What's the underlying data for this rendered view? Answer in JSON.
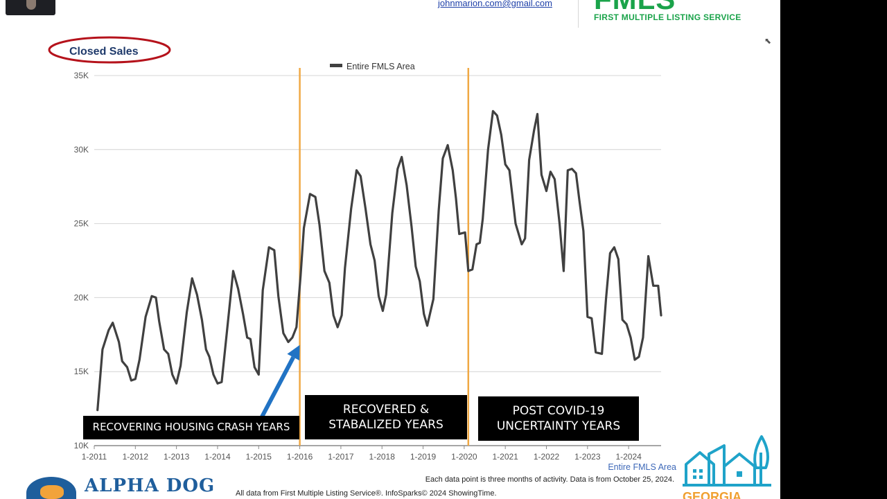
{
  "header": {
    "email": "johnmarion.com@gmail.com",
    "logo_text": "FMLS",
    "logo_tagline": "FIRST MULTIPLE LISTING SERVICE"
  },
  "chart_data": {
    "type": "line",
    "title": "Closed Sales",
    "legend": "Entire FMLS Area",
    "legend_position": "top-center",
    "xlabel": "",
    "ylabel": "",
    "ylim": [
      10000,
      35000
    ],
    "yticks": [
      10000,
      15000,
      20000,
      25000,
      30000,
      35000
    ],
    "ytick_labels": [
      "10K",
      "15K",
      "20K",
      "25K",
      "30K",
      "35K"
    ],
    "x_start_year": 2011,
    "x_end_year": 2024.79,
    "xtick_labels": [
      "1-2011",
      "1-2012",
      "1-2013",
      "1-2014",
      "1-2015",
      "1-2016",
      "1-2017",
      "1-2018",
      "1-2019",
      "1-2020",
      "1-2021",
      "1-2022",
      "1-2023",
      "1-2024"
    ],
    "grid": true,
    "vertical_markers": [
      2016.0,
      2020.1
    ],
    "vertical_marker_color": "#f0a844",
    "line_color": "#404040",
    "series": [
      {
        "name": "Entire FMLS Area",
        "x": [
          2011.08,
          2011.2,
          2011.35,
          2011.45,
          2011.6,
          2011.68,
          2011.8,
          2011.9,
          2012.0,
          2012.1,
          2012.25,
          2012.4,
          2012.5,
          2012.58,
          2012.7,
          2012.8,
          2012.9,
          2013.0,
          2013.1,
          2013.25,
          2013.38,
          2013.5,
          2013.62,
          2013.72,
          2013.8,
          2013.9,
          2014.0,
          2014.1,
          2014.25,
          2014.38,
          2014.5,
          2014.62,
          2014.72,
          2014.8,
          2014.9,
          2015.0,
          2015.1,
          2015.25,
          2015.38,
          2015.48,
          2015.6,
          2015.72,
          2015.82,
          2015.92,
          2016.02,
          2016.1,
          2016.25,
          2016.38,
          2016.48,
          2016.6,
          2016.72,
          2016.82,
          2016.92,
          2017.02,
          2017.1,
          2017.25,
          2017.38,
          2017.48,
          2017.6,
          2017.72,
          2017.82,
          2017.92,
          2018.02,
          2018.1,
          2018.25,
          2018.38,
          2018.48,
          2018.6,
          2018.72,
          2018.82,
          2018.92,
          2019.02,
          2019.1,
          2019.25,
          2019.38,
          2019.48,
          2019.6,
          2019.72,
          2019.8,
          2019.88,
          2020.02,
          2020.1,
          2020.2,
          2020.3,
          2020.38,
          2020.45,
          2020.58,
          2020.7,
          2020.8,
          2020.9,
          2021.0,
          2021.1,
          2021.25,
          2021.4,
          2021.48,
          2021.58,
          2021.7,
          2021.78,
          2021.88,
          2022.0,
          2022.1,
          2022.2,
          2022.32,
          2022.42,
          2022.52,
          2022.62,
          2022.72,
          2022.8,
          2022.9,
          2023.0,
          2023.1,
          2023.2,
          2023.35,
          2023.45,
          2023.55,
          2023.65,
          2023.75,
          2023.85,
          2023.95,
          2024.05,
          2024.15,
          2024.25,
          2024.35,
          2024.48,
          2024.6,
          2024.72,
          2024.79
        ],
        "y": [
          12400,
          16500,
          17800,
          18300,
          17000,
          15700,
          15300,
          14400,
          14500,
          15800,
          18700,
          20100,
          20000,
          18400,
          16500,
          16200,
          14800,
          14200,
          15400,
          19000,
          21300,
          20200,
          18500,
          16500,
          16000,
          14800,
          14200,
          14300,
          18300,
          21800,
          20600,
          18900,
          17300,
          17200,
          15300,
          14800,
          20500,
          23400,
          23200,
          20100,
          17600,
          17000,
          17300,
          18000,
          21500,
          24700,
          27000,
          26800,
          24900,
          21800,
          21000,
          18800,
          18000,
          18800,
          22000,
          26000,
          28600,
          28200,
          26000,
          23600,
          22500,
          20100,
          19100,
          20200,
          25700,
          28700,
          29500,
          27600,
          24800,
          22100,
          21100,
          18900,
          18100,
          19900,
          25900,
          29400,
          30300,
          28600,
          26700,
          24300,
          24400,
          21800,
          21900,
          23600,
          23700,
          25300,
          30000,
          32600,
          32300,
          31000,
          29000,
          28600,
          25000,
          23600,
          24000,
          29300,
          31300,
          32400,
          28300,
          27200,
          28500,
          28000,
          25000,
          21800,
          28600,
          28700,
          28400,
          26600,
          24500,
          18700,
          18600,
          16300,
          16200,
          19900,
          23000,
          23400,
          22600,
          18500,
          18200,
          17300,
          15800,
          16000,
          17300,
          22800,
          20800,
          20800,
          18800
        ]
      }
    ],
    "annotations": [
      {
        "text": "RECOVERING HOUSING CRASH YEARS"
      },
      {
        "text": "RECOVERED &\nSTABALIZED YEARS"
      },
      {
        "text": "POST COVID-19\nUNCERTAINTY YEARS"
      }
    ],
    "arrow": {
      "from": [
        2014.9,
        11000
      ],
      "to": [
        2016.0,
        16800
      ],
      "color": "#2173c4"
    }
  },
  "footer": {
    "series_label": "Entire FMLS Area",
    "note": "Each data point is three months of activity. Data is from October 25, 2024.",
    "source": "All data from First Multiple Listing Service®. InfoSparks© 2024 ShowingTime.",
    "alpha_dog": "ALPHA DOG",
    "georgia": "GEORGIA"
  }
}
